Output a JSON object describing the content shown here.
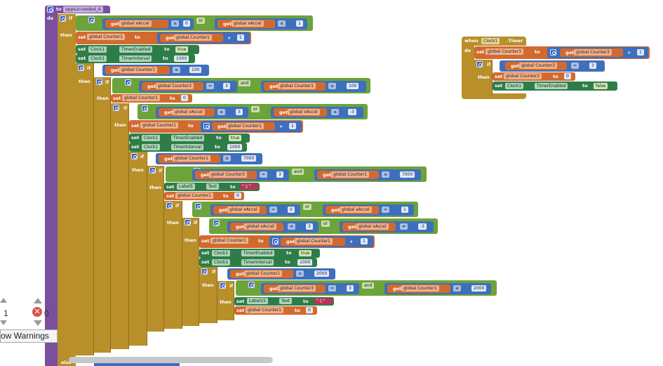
{
  "procedure": {
    "to_label": "to",
    "name": "appsucceeded_A",
    "do_label": "do"
  },
  "keywords": {
    "if": "if",
    "then": "then",
    "else": "else",
    "set": "set",
    "get": "get",
    "to": "to",
    "or": "or",
    "and": "and",
    "do": "do",
    "when": "when"
  },
  "vars": {
    "xaccel": "global xAccel",
    "counter1": "global Counter1",
    "counter3": "global Counter3"
  },
  "ops": {
    "eq": "=",
    "ge": "≥",
    "le": "≤",
    "ne": "≠",
    "plus": "+"
  },
  "numbers": {
    "n0": "0",
    "n1": "1",
    "n3": "3",
    "n100": "100",
    "n1000": "1000",
    "n7000": "7000",
    "n2000": "2000",
    "nm3": "-3"
  },
  "components": {
    "clock1": "Clock1",
    "timer_enabled": "TimerEnabled",
    "timer_interval": "TimerInterval",
    "label5": "Label5",
    "label15": "Label15",
    "text_prop": "Text",
    "timer_event": ".Timer"
  },
  "bools": {
    "true": "true",
    "false": "false"
  },
  "warnings": {
    "count": "1",
    "errors": "0",
    "button": "ow Warnings"
  },
  "colors": {
    "procedure": "#7a4fa0",
    "control": "#b98f2a",
    "variable": "#d26a2f",
    "math": "#3e6fbd",
    "logic": "#6ca33a",
    "component_set": "#2e7d48",
    "text": "#b5365a"
  }
}
